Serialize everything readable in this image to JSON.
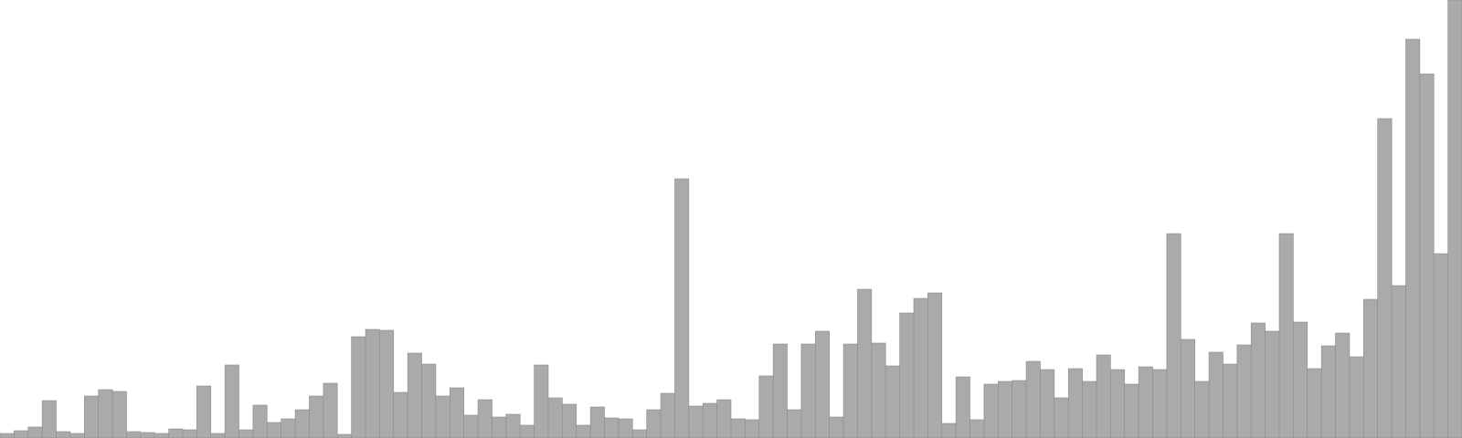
{
  "chart_data": {
    "type": "bar",
    "title": "",
    "xlabel": "",
    "ylabel": "",
    "grid": false,
    "legend": "none",
    "bar_color": "#aaaaaa",
    "edge_color": "#8c8c8c",
    "background": "#ffffff",
    "ylim": [
      0,
      480
    ],
    "values": [
      5,
      8,
      12,
      41,
      7,
      5,
      46,
      53,
      51,
      7,
      6,
      5,
      10,
      9,
      57,
      5,
      80,
      9,
      36,
      17,
      21,
      31,
      46,
      60,
      4,
      111,
      119,
      118,
      50,
      93,
      81,
      46,
      55,
      25,
      42,
      23,
      26,
      14,
      80,
      44,
      37,
      14,
      34,
      22,
      21,
      9,
      31,
      49,
      284,
      35,
      38,
      42,
      21,
      20,
      68,
      103,
      31,
      103,
      117,
      23,
      103,
      163,
      104,
      79,
      137,
      153,
      159,
      16,
      67,
      20,
      59,
      62,
      63,
      84,
      75,
      44,
      76,
      62,
      91,
      75,
      59,
      78,
      75,
      224,
      108,
      62,
      94,
      81,
      102,
      126,
      117,
      224,
      127,
      76,
      101,
      115,
      89,
      152,
      350,
      167,
      437,
      399,
      202,
      480
    ]
  }
}
